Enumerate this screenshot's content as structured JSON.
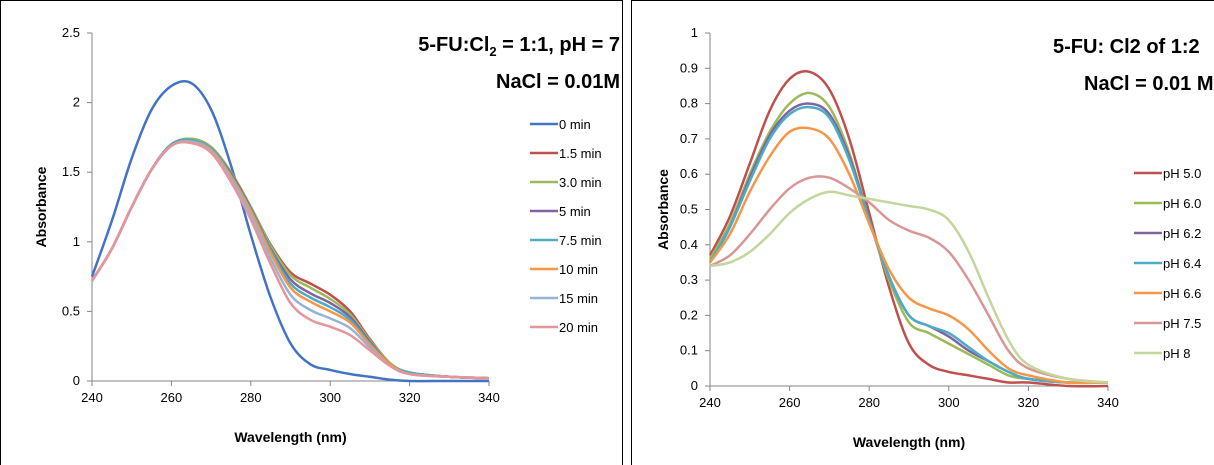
{
  "chart_data": [
    {
      "type": "line",
      "title_line1": "5-FU:Cl",
      "title_sub": "2",
      "title_line1_rest": " = 1:1, pH = 7",
      "title_line2": "NaCl = 0.01M",
      "xlabel": "Wavelength (nm)",
      "ylabel": "Absorbance",
      "xlim": [
        240,
        340
      ],
      "ylim": [
        0,
        2.5
      ],
      "xticks": [
        240,
        260,
        280,
        300,
        320,
        340
      ],
      "yticks": [
        0,
        0.5,
        1,
        1.5,
        2,
        2.5
      ],
      "ytick_labels": [
        "0",
        "0.5",
        "1",
        "1.5",
        "2",
        "2.5"
      ],
      "legend_position": "right",
      "x": [
        240,
        245,
        250,
        255,
        260,
        265,
        270,
        275,
        280,
        285,
        290,
        295,
        300,
        305,
        310,
        315,
        320,
        330,
        340
      ],
      "series": [
        {
          "name": "0 min",
          "color": "#4472c4",
          "values": [
            0.75,
            1.15,
            1.6,
            1.95,
            2.12,
            2.14,
            1.95,
            1.55,
            1.05,
            0.6,
            0.27,
            0.12,
            0.08,
            0.05,
            0.03,
            0.01,
            0.0,
            0.0,
            0.0
          ]
        },
        {
          "name": "1.5 min",
          "color": "#c0504d",
          "values": [
            0.72,
            0.95,
            1.25,
            1.52,
            1.7,
            1.74,
            1.68,
            1.5,
            1.25,
            0.98,
            0.78,
            0.7,
            0.62,
            0.5,
            0.3,
            0.13,
            0.06,
            0.03,
            0.02
          ]
        },
        {
          "name": "3.0 min",
          "color": "#9bbb59",
          "values": [
            0.72,
            0.95,
            1.25,
            1.52,
            1.7,
            1.74,
            1.68,
            1.5,
            1.25,
            0.97,
            0.76,
            0.67,
            0.59,
            0.48,
            0.29,
            0.13,
            0.06,
            0.03,
            0.02
          ]
        },
        {
          "name": "5 min",
          "color": "#8064a2",
          "values": [
            0.72,
            0.95,
            1.25,
            1.52,
            1.7,
            1.73,
            1.67,
            1.49,
            1.24,
            0.95,
            0.73,
            0.63,
            0.56,
            0.46,
            0.28,
            0.12,
            0.06,
            0.03,
            0.02
          ]
        },
        {
          "name": "7.5 min",
          "color": "#4bacc6",
          "values": [
            0.72,
            0.95,
            1.25,
            1.52,
            1.7,
            1.73,
            1.67,
            1.48,
            1.23,
            0.94,
            0.7,
            0.6,
            0.53,
            0.44,
            0.27,
            0.12,
            0.06,
            0.03,
            0.02
          ]
        },
        {
          "name": "10 min",
          "color": "#f79646",
          "values": [
            0.72,
            0.95,
            1.25,
            1.52,
            1.69,
            1.72,
            1.66,
            1.47,
            1.22,
            0.92,
            0.67,
            0.57,
            0.5,
            0.42,
            0.26,
            0.12,
            0.05,
            0.03,
            0.02
          ]
        },
        {
          "name": "15 min",
          "color": "#95b3d7",
          "values": [
            0.72,
            0.95,
            1.25,
            1.52,
            1.69,
            1.72,
            1.65,
            1.45,
            1.19,
            0.88,
            0.62,
            0.51,
            0.45,
            0.38,
            0.24,
            0.11,
            0.05,
            0.03,
            0.02
          ]
        },
        {
          "name": "20 min",
          "color": "#e6959b",
          "values": [
            0.72,
            0.95,
            1.25,
            1.52,
            1.69,
            1.71,
            1.64,
            1.43,
            1.16,
            0.84,
            0.56,
            0.44,
            0.39,
            0.33,
            0.22,
            0.11,
            0.05,
            0.03,
            0.02
          ]
        }
      ]
    },
    {
      "type": "line",
      "title_line1": "5-FU: Cl2 of 1:2",
      "title_line2": "NaCl = 0.01 M",
      "xlabel": "Wavelength (nm)",
      "ylabel": "Absorbance",
      "xlim": [
        240,
        340
      ],
      "ylim": [
        0,
        1
      ],
      "xticks": [
        240,
        260,
        280,
        300,
        320,
        340
      ],
      "yticks": [
        0,
        0.1,
        0.2,
        0.3,
        0.4,
        0.5,
        0.6,
        0.7,
        0.8,
        0.9,
        1
      ],
      "ytick_labels": [
        "0",
        "0.1",
        "0.2",
        "0.3",
        "0.4",
        "0.5",
        "0.6",
        "0.7",
        "0.8",
        "0.9",
        "1"
      ],
      "legend_position": "right",
      "x": [
        240,
        245,
        250,
        255,
        260,
        265,
        270,
        275,
        280,
        285,
        290,
        295,
        300,
        305,
        310,
        315,
        320,
        330,
        340
      ],
      "series": [
        {
          "name": "pH 5.0",
          "color": "#c0504d",
          "values": [
            0.37,
            0.48,
            0.63,
            0.78,
            0.87,
            0.89,
            0.84,
            0.7,
            0.49,
            0.28,
            0.12,
            0.06,
            0.04,
            0.03,
            0.02,
            0.01,
            0.01,
            0.0,
            0.0
          ]
        },
        {
          "name": "pH 6.0",
          "color": "#9bbb59",
          "values": [
            0.36,
            0.46,
            0.6,
            0.72,
            0.8,
            0.83,
            0.79,
            0.66,
            0.47,
            0.3,
            0.18,
            0.15,
            0.12,
            0.09,
            0.06,
            0.03,
            0.02,
            0.01,
            0.01
          ]
        },
        {
          "name": "pH 6.2",
          "color": "#8064a2",
          "values": [
            0.35,
            0.45,
            0.59,
            0.71,
            0.78,
            0.8,
            0.77,
            0.65,
            0.47,
            0.31,
            0.2,
            0.17,
            0.14,
            0.1,
            0.07,
            0.04,
            0.02,
            0.01,
            0.01
          ]
        },
        {
          "name": "pH 6.4",
          "color": "#4bacc6",
          "values": [
            0.35,
            0.45,
            0.58,
            0.7,
            0.77,
            0.79,
            0.76,
            0.64,
            0.47,
            0.31,
            0.2,
            0.17,
            0.15,
            0.11,
            0.07,
            0.04,
            0.02,
            0.01,
            0.01
          ]
        },
        {
          "name": "pH 6.6",
          "color": "#f79646",
          "values": [
            0.35,
            0.43,
            0.55,
            0.65,
            0.72,
            0.73,
            0.7,
            0.6,
            0.46,
            0.33,
            0.25,
            0.22,
            0.2,
            0.16,
            0.1,
            0.05,
            0.03,
            0.01,
            0.01
          ]
        },
        {
          "name": "pH 7.5",
          "color": "#d99694",
          "values": [
            0.34,
            0.37,
            0.43,
            0.5,
            0.56,
            0.59,
            0.59,
            0.56,
            0.52,
            0.47,
            0.44,
            0.42,
            0.38,
            0.3,
            0.2,
            0.1,
            0.05,
            0.02,
            0.01
          ]
        },
        {
          "name": "pH 8",
          "color": "#c3d69b",
          "values": [
            0.34,
            0.35,
            0.38,
            0.43,
            0.49,
            0.53,
            0.55,
            0.54,
            0.53,
            0.52,
            0.51,
            0.5,
            0.47,
            0.38,
            0.25,
            0.13,
            0.06,
            0.02,
            0.01
          ]
        }
      ]
    }
  ]
}
